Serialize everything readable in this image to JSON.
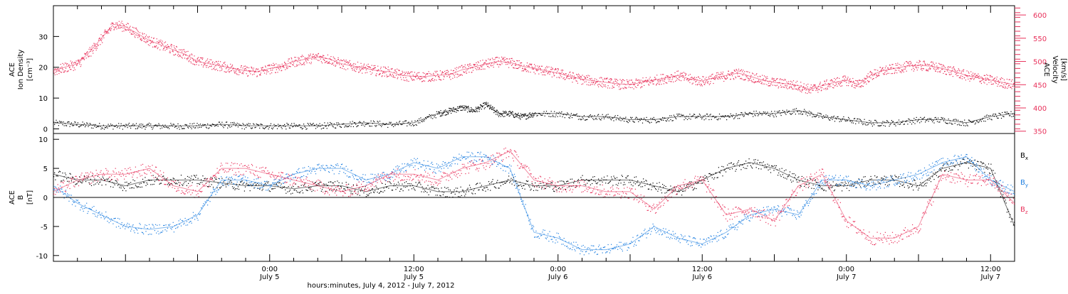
{
  "chart_data": [
    {
      "type": "scatter",
      "panel": "top",
      "left_axis_label": [
        "ACE",
        "Ion Density",
        "[cm⁻³]"
      ],
      "right_axis_label": [
        "ACE",
        "Velocity",
        "[km/s]"
      ],
      "x_range_hours": [
        0,
        80
      ],
      "ylim_left": [
        -1.5,
        40
      ],
      "ylim_right": [
        345,
        620
      ],
      "left_ticks": [
        0,
        10,
        20,
        30
      ],
      "right_ticks": [
        350,
        400,
        450,
        500,
        550,
        600
      ],
      "colors": {
        "density": "#000000",
        "velocity": "#e8305a"
      },
      "series": [
        {
          "axis": "left",
          "color": "#000000",
          "x": [
            0,
            2,
            4,
            6,
            8,
            10,
            12,
            14,
            16,
            18,
            20,
            22,
            24,
            26,
            28,
            30,
            32,
            33,
            34,
            35,
            36,
            37,
            38,
            39,
            40,
            42,
            44,
            46,
            48,
            50,
            52,
            54,
            56,
            58,
            60,
            62,
            64,
            66,
            68,
            70,
            72,
            74,
            76,
            78,
            80
          ],
          "y": [
            2,
            1.5,
            1,
            1,
            1,
            1,
            1,
            1.5,
            1,
            1,
            1,
            1,
            1.5,
            2,
            1.5,
            2,
            5,
            6,
            7,
            6,
            8,
            5,
            5,
            4,
            5,
            5,
            4,
            4,
            3,
            3,
            4,
            4,
            4,
            5,
            5,
            6,
            4,
            3,
            2,
            2,
            3,
            3,
            2,
            4,
            5
          ]
        },
        {
          "axis": "right",
          "color": "#e8305a",
          "x": [
            0,
            1,
            2,
            3,
            4,
            5,
            6,
            7,
            8,
            9,
            10,
            11,
            12,
            13,
            14,
            15,
            16,
            17,
            18,
            19,
            20,
            21,
            22,
            23,
            24,
            25,
            26,
            27,
            28,
            29,
            30,
            31,
            32,
            33,
            34,
            35,
            36,
            37,
            38,
            39,
            40,
            41,
            42,
            43,
            44,
            45,
            46,
            47,
            48,
            49,
            50,
            51,
            52,
            53,
            54,
            55,
            56,
            57,
            58,
            59,
            60,
            61,
            62,
            63,
            64,
            65,
            66,
            67,
            68,
            69,
            70,
            71,
            72,
            73,
            74,
            75,
            76,
            77,
            78,
            79,
            80
          ],
          "y": [
            480,
            488,
            495,
            520,
            550,
            580,
            575,
            560,
            545,
            535,
            525,
            515,
            500,
            495,
            490,
            485,
            480,
            478,
            485,
            490,
            500,
            505,
            510,
            505,
            495,
            490,
            485,
            480,
            478,
            470,
            468,
            468,
            470,
            472,
            482,
            488,
            495,
            500,
            498,
            490,
            485,
            480,
            475,
            468,
            462,
            458,
            455,
            452,
            450,
            455,
            460,
            465,
            470,
            462,
            458,
            465,
            470,
            475,
            468,
            460,
            455,
            452,
            448,
            440,
            448,
            455,
            460,
            450,
            470,
            480,
            485,
            490,
            492,
            490,
            485,
            478,
            470,
            465,
            460,
            455,
            450
          ]
        }
      ]
    },
    {
      "type": "scatter",
      "panel": "bottom",
      "left_axis_label": [
        "ACE",
        "B",
        "[nT]"
      ],
      "x_range_hours": [
        0,
        80
      ],
      "ylim": [
        -11,
        11
      ],
      "ticks": [
        -10,
        -5,
        0,
        5,
        10
      ],
      "zero_line": true,
      "legend": [
        "B",
        "B",
        "B"
      ],
      "legend_subscripts": [
        "x",
        "y",
        "z"
      ],
      "legend_placement": "right",
      "colors": {
        "bx": "#000000",
        "by": "#1f7fe0",
        "bz": "#e8305a"
      },
      "series": [
        {
          "name": "B",
          "color": "#000000",
          "x": [
            0,
            2,
            4,
            6,
            8,
            10,
            12,
            14,
            16,
            18,
            20,
            22,
            24,
            26,
            28,
            30,
            32,
            34,
            36,
            38,
            40,
            42,
            44,
            46,
            48,
            50,
            52,
            54,
            56,
            58,
            60,
            62,
            64,
            66,
            68,
            70,
            72,
            74,
            76,
            78,
            80
          ],
          "y": [
            4,
            3,
            3,
            2,
            3,
            3,
            3,
            2.5,
            2,
            2,
            1.5,
            2,
            2,
            1,
            2,
            2,
            1,
            1,
            2,
            3,
            2,
            2,
            3,
            3,
            3,
            2,
            1,
            3,
            5,
            6,
            5,
            3,
            2,
            2,
            3,
            3,
            2,
            5,
            6,
            5,
            -5
          ]
        },
        {
          "name": "B",
          "color": "#1f7fe0",
          "x": [
            0,
            2,
            4,
            6,
            8,
            10,
            12,
            14,
            16,
            18,
            20,
            22,
            24,
            26,
            28,
            30,
            32,
            34,
            36,
            38,
            40,
            42,
            44,
            46,
            48,
            50,
            52,
            54,
            56,
            58,
            60,
            62,
            64,
            66,
            68,
            70,
            72,
            74,
            76,
            78,
            80
          ],
          "y": [
            2,
            -1,
            -3,
            -5,
            -5.5,
            -5,
            -3,
            3,
            3,
            2,
            4,
            5,
            5,
            3,
            4,
            6,
            5,
            7,
            7,
            5,
            -6,
            -7,
            -9,
            -9,
            -8,
            -5,
            -7,
            -8,
            -6,
            -3,
            -2,
            -3,
            3,
            3,
            2,
            3,
            4,
            6,
            7,
            3,
            1
          ]
        },
        {
          "name": "B",
          "color": "#e8305a",
          "x": [
            0,
            2,
            4,
            6,
            8,
            10,
            12,
            14,
            16,
            18,
            20,
            22,
            24,
            26,
            28,
            30,
            32,
            34,
            36,
            38,
            40,
            42,
            44,
            46,
            48,
            50,
            52,
            54,
            56,
            58,
            60,
            62,
            64,
            66,
            68,
            70,
            72,
            74,
            76,
            78,
            80
          ],
          "y": [
            1,
            3,
            4,
            4,
            5,
            2,
            1,
            5,
            5,
            4,
            3,
            2,
            1,
            2,
            4,
            4,
            3,
            5,
            6,
            8,
            3,
            2,
            2,
            1,
            1,
            -2,
            2,
            3,
            -3,
            -2,
            -4,
            2,
            4,
            -4,
            -7,
            -7,
            -5,
            4,
            3,
            3,
            -1
          ]
        }
      ]
    }
  ],
  "x_axis": {
    "tick_labels": [
      {
        "time": "0:00",
        "date": "July 5"
      },
      {
        "time": "12:00",
        "date": "July 5"
      },
      {
        "time": "0:00",
        "date": "July 6"
      },
      {
        "time": "12:00",
        "date": "July 6"
      },
      {
        "time": "0:00",
        "date": "July 7"
      },
      {
        "time": "12:00",
        "date": "July 7"
      }
    ],
    "tick_hours": [
      18,
      30,
      42,
      54,
      66,
      78
    ],
    "xlabel": "hours:minutes, July  4, 2012 - July  7, 2012"
  }
}
